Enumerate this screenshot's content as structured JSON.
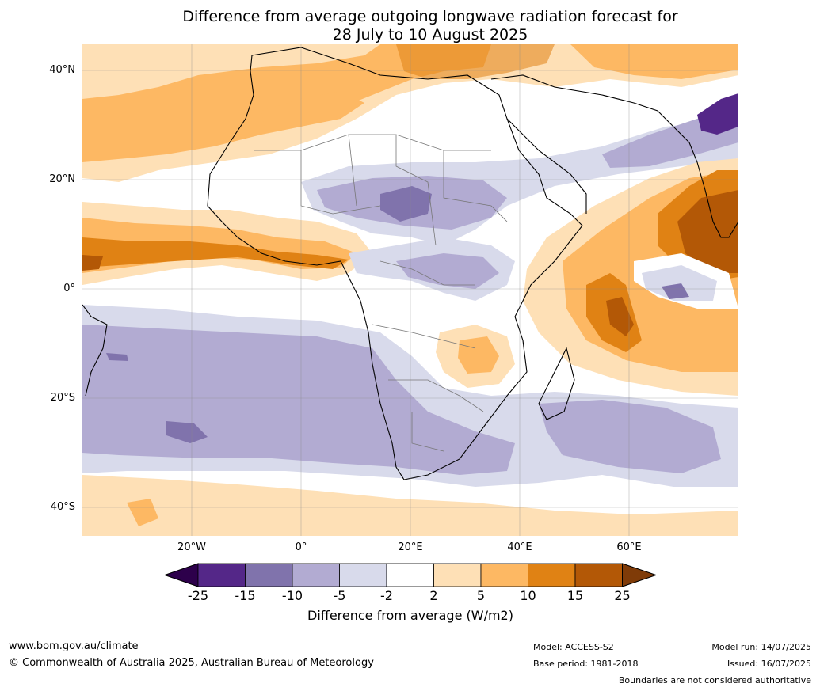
{
  "title": {
    "line1": "Difference from average outgoing longwave radiation forecast for",
    "line2": "28 July to 10 August 2025"
  },
  "axes": {
    "lat_labels": [
      "40°N",
      "20°N",
      "0°",
      "20°S",
      "40°S"
    ],
    "lon_labels": [
      "20°W",
      "0°",
      "20°E",
      "40°E",
      "60°E"
    ]
  },
  "colorbar": {
    "ticks": [
      "-25",
      "-15",
      "-10",
      "-5",
      "-2",
      "2",
      "5",
      "10",
      "15",
      "25"
    ],
    "caption": "Difference from average (W/m2)",
    "colors": {
      "below_-25": "#2d004b",
      "-25_to_-15": "#542788",
      "-15_to_-10": "#8073ac",
      "-10_to_-5": "#b2abd2",
      "-5_to_-2": "#d8daeb",
      "-2_to_2": "#ffffff",
      "2_to_5": "#fee0b6",
      "5_to_10": "#fdb863",
      "10_to_15": "#e08214",
      "15_to_25": "#b35806",
      "above_25": "#7f3b08"
    }
  },
  "footer": {
    "website": "www.bom.gov.au/climate",
    "copyright": "© Commonwealth of Australia 2025, Australian Bureau of Meteorology",
    "model": "Model: ACCESS-S2",
    "base_period": "Base period: 1981-2018",
    "model_run": "Model run: 14/07/2025",
    "issued": "Issued: 16/07/2025",
    "disclaimer": "Boundaries are not considered authoritative"
  }
}
